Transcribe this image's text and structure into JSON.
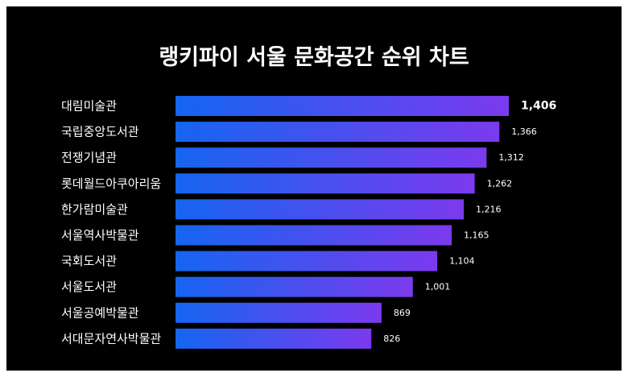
{
  "chart_data": {
    "type": "bar",
    "orientation": "horizontal",
    "title": "랭키파이 서울 문화공간 순위 차트",
    "categories": [
      "대림미술관",
      "국립중앙도서관",
      "전쟁기념관",
      "롯데월드아쿠아리움",
      "한가람미술관",
      "서울역사박물관",
      "국회도서관",
      "서울도서관",
      "서울공예박물관",
      "서대문자연사박물관"
    ],
    "values": [
      1406,
      1366,
      1312,
      1262,
      1216,
      1165,
      1104,
      1001,
      869,
      826
    ],
    "value_labels": [
      "1,406",
      "1,366",
      "1,312",
      "1,262",
      "1,216",
      "1,165",
      "1,104",
      "1,001",
      "869",
      "826"
    ],
    "xlabel": "",
    "ylabel": "",
    "grid": false,
    "colors": {
      "background": "#000000",
      "bar_start": "#1565F0",
      "bar_end": "#7B3AED",
      "text": "#ffffff"
    }
  }
}
